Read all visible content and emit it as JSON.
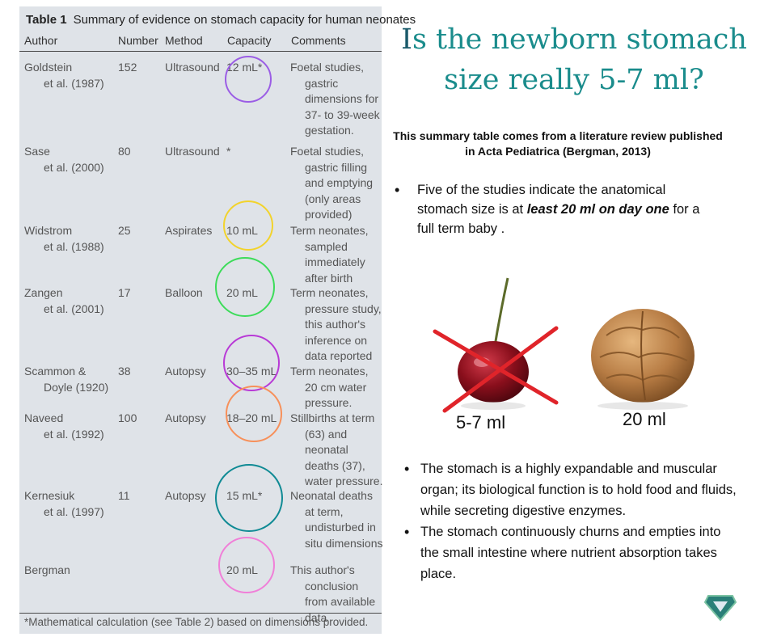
{
  "table": {
    "number_label": "Table 1",
    "title": "Summary of evidence on stomach capacity for human neonates",
    "headers": [
      "Author",
      "Number",
      "Method",
      "Capacity",
      "Comments"
    ],
    "rows": [
      {
        "author1": "Goldstein",
        "author2": "et al. (1987)",
        "number": "152",
        "method": "Ultrasound",
        "capacity": "12 mL*",
        "comment1": "Foetal studies,",
        "comment2": "gastric dimensions for 37- to 39-week gestation."
      },
      {
        "author1": "Sase",
        "author2": "et al. (2000)",
        "number": "80",
        "method": "Ultrasound",
        "capacity": "*",
        "comment1": "Foetal studies,",
        "comment2": "gastric filling and emptying (only areas provided)"
      },
      {
        "author1": "Widstrom",
        "author2": "et al. (1988)",
        "number": "25",
        "method": "Aspirates",
        "capacity": "10 mL",
        "comment1": "Term neonates,",
        "comment2": "sampled immediately after birth"
      },
      {
        "author1": "Zangen",
        "author2": "et al. (2001)",
        "number": "17",
        "method": "Balloon",
        "capacity": "20 mL",
        "comment1": "Term neonates,",
        "comment2": "pressure study, this author's inference on data reported"
      },
      {
        "author1": "Scammon &",
        "author2": "Doyle (1920)",
        "number": "38",
        "method": "Autopsy",
        "capacity": "30–35 mL",
        "comment1": "Term neonates,",
        "comment2": "20 cm water pressure."
      },
      {
        "author1": "Naveed",
        "author2": "et al. (1992)",
        "number": "100",
        "method": "Autopsy",
        "capacity": "18–20 mL",
        "comment1": "Stillbirths at term",
        "comment2": "(63) and neonatal deaths (37), water pressure."
      },
      {
        "author1": "Kernesiuk",
        "author2": "et al. (1997)",
        "number": "11",
        "method": "Autopsy",
        "capacity": "15 mL*",
        "comment1": "Neonatal deaths",
        "comment2": "at term, undisturbed in situ dimensions"
      },
      {
        "author1": "Bergman",
        "author2": "",
        "number": "",
        "method": "",
        "capacity": "20 mL",
        "comment1": "This author's",
        "comment2": "conclusion from available data"
      }
    ],
    "footnote": "*Mathematical calculation (see Table 2) based on dimensions provided."
  },
  "ring_colors": [
    "#9b5de5",
    "#f2d32c",
    "#3ddc5a",
    "#b83ad6",
    "#f7905a",
    "#0f8a94",
    "#f07fd8"
  ],
  "title_first_letter": "I",
  "title_rest": "s the newborn stomach size really 5-7 ml?",
  "summary": "This summary table comes from a literature review published in Acta Pediatrica  (Bergman, 2013)",
  "bullet1": {
    "before": "Five of the studies indicate the anatomical stomach size is at ",
    "emphasis": "least 20 ml on day one",
    "after": " for a full term baby ."
  },
  "fruits": {
    "cherry_label": "5-7 ml",
    "walnut_label": "20 ml"
  },
  "bullets2": [
    "The stomach is a highly expandable and muscular organ; its biological function is to hold food and fluids, while secreting digestive enzymes.",
    "The stomach continuously churns and empties into the small intestine where nutrient absorption takes place."
  ],
  "colors": {
    "title_teal": "#1a8c8c",
    "table_bg": "#dfe3e8",
    "cross_red": "#e0242a"
  },
  "icons": [
    "superhero-shield-logo-icon"
  ]
}
